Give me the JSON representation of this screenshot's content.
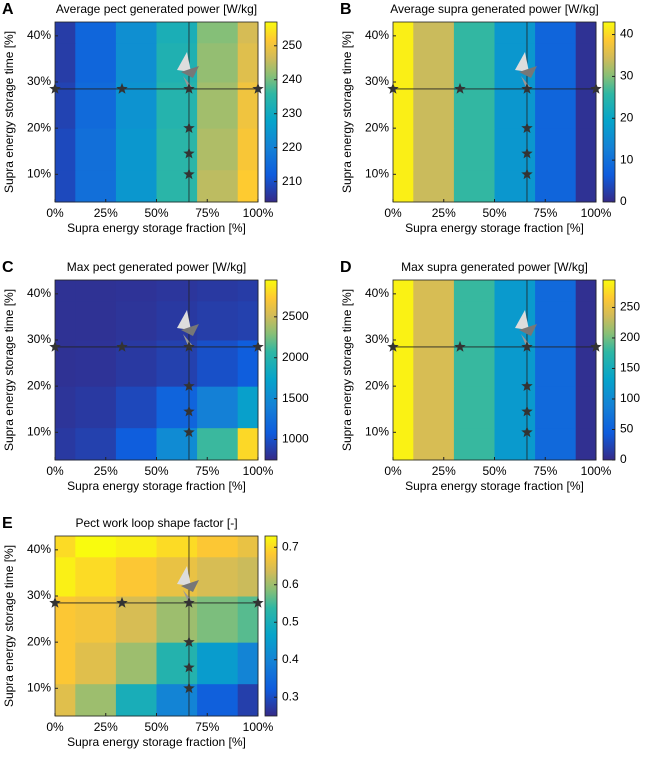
{
  "chart_data": [
    {
      "type": "heatmap",
      "label": "A",
      "title": "Average pect generated power [W/kg]",
      "x_label": "Supra energy storage fraction [%]",
      "y_label": "Supra energy storage time [%]",
      "x": [
        0,
        20,
        40,
        60,
        80,
        100
      ],
      "y": [
        7,
        15,
        25,
        35,
        42
      ],
      "z": [
        [
          209,
          216,
          225,
          235,
          245,
          252
        ],
        [
          209,
          216,
          225,
          235,
          244,
          251
        ],
        [
          208,
          215,
          224,
          234,
          243,
          250
        ],
        [
          207,
          214,
          223,
          233,
          242,
          248
        ],
        [
          207,
          214,
          223,
          232,
          241,
          247
        ]
      ],
      "xlim": [
        0,
        100
      ],
      "ylim": [
        4,
        43
      ],
      "xticks": [
        {
          "value": 0,
          "label": "0%"
        },
        {
          "value": 25,
          "label": "25%"
        },
        {
          "value": 50,
          "label": "50%"
        },
        {
          "value": 75,
          "label": "75%"
        },
        {
          "value": 100,
          "label": "100%"
        }
      ],
      "yticks": [
        {
          "value": 10,
          "label": "10%"
        },
        {
          "value": 20,
          "label": "20%"
        },
        {
          "value": 30,
          "label": "30%"
        },
        {
          "value": 40,
          "label": "40%"
        }
      ],
      "clim": [
        204,
        257
      ],
      "cticks": [
        210,
        220,
        230,
        240,
        250
      ],
      "markers_x": [
        0,
        33,
        66,
        100,
        66,
        66,
        66
      ],
      "markers_y": [
        28.5,
        28.5,
        28.5,
        28.5,
        20,
        14.5,
        10
      ],
      "crosshair": [
        66,
        28.5
      ]
    },
    {
      "type": "heatmap",
      "label": "B",
      "title": "Average supra generated power [W/kg]",
      "x_label": "Supra energy storage fraction [%]",
      "y_label": "Supra energy storage time [%]",
      "x": [
        0,
        20,
        40,
        60,
        80,
        100
      ],
      "y": [
        7,
        15,
        25,
        35,
        42
      ],
      "z": [
        [
          42,
          34,
          26,
          17,
          8,
          1
        ],
        [
          42,
          34,
          26,
          17,
          8,
          1
        ],
        [
          42,
          34,
          26,
          17,
          8,
          1
        ],
        [
          42,
          34,
          26,
          17,
          8,
          1
        ],
        [
          42,
          34,
          26,
          17,
          8,
          1
        ]
      ],
      "xlim": [
        0,
        100
      ],
      "ylim": [
        4,
        43
      ],
      "xticks": [
        {
          "value": 0,
          "label": "0%"
        },
        {
          "value": 25,
          "label": "25%"
        },
        {
          "value": 50,
          "label": "50%"
        },
        {
          "value": 75,
          "label": "75%"
        },
        {
          "value": 100,
          "label": "100%"
        }
      ],
      "yticks": [
        {
          "value": 10,
          "label": "10%"
        },
        {
          "value": 20,
          "label": "20%"
        },
        {
          "value": 30,
          "label": "30%"
        },
        {
          "value": 40,
          "label": "40%"
        }
      ],
      "clim": [
        0,
        43
      ],
      "cticks": [
        0,
        10,
        20,
        30,
        40
      ],
      "markers_x": [
        0,
        33,
        66,
        100,
        66,
        66,
        66
      ],
      "markers_y": [
        28.5,
        28.5,
        28.5,
        28.5,
        20,
        14.5,
        10
      ],
      "crosshair": [
        66,
        28.5
      ]
    },
    {
      "type": "heatmap",
      "label": "C",
      "title": "Max pect generated power [W/kg]",
      "x_label": "Supra energy storage fraction [%]",
      "y_label": "Supra energy storage time [%]",
      "x": [
        0,
        20,
        40,
        60,
        80,
        100
      ],
      "y": [
        7,
        15,
        25,
        35,
        42
      ],
      "z": [
        [
          850,
          900,
          1100,
          1500,
          2100,
          2800
        ],
        [
          820,
          850,
          950,
          1150,
          1400,
          1700
        ],
        [
          800,
          810,
          850,
          900,
          1000,
          1100
        ],
        [
          800,
          800,
          820,
          850,
          880,
          900
        ],
        [
          800,
          800,
          810,
          830,
          850,
          870
        ]
      ],
      "xlim": [
        0,
        100
      ],
      "ylim": [
        4,
        43
      ],
      "xticks": [
        {
          "value": 0,
          "label": "0%"
        },
        {
          "value": 25,
          "label": "25%"
        },
        {
          "value": 50,
          "label": "50%"
        },
        {
          "value": 75,
          "label": "75%"
        },
        {
          "value": 100,
          "label": "100%"
        }
      ],
      "yticks": [
        {
          "value": 10,
          "label": "10%"
        },
        {
          "value": 20,
          "label": "20%"
        },
        {
          "value": 30,
          "label": "30%"
        },
        {
          "value": 40,
          "label": "40%"
        }
      ],
      "clim": [
        750,
        2950
      ],
      "cticks": [
        1000,
        1500,
        2000,
        2500
      ],
      "markers_x": [
        0,
        33,
        66,
        100,
        66,
        66,
        66
      ],
      "markers_y": [
        28.5,
        28.5,
        28.5,
        28.5,
        20,
        14.5,
        10
      ],
      "crosshair": [
        66,
        28.5
      ]
    },
    {
      "type": "heatmap",
      "label": "D",
      "title": "Max supra generated power [W/kg]",
      "x_label": "Supra energy storage fraction [%]",
      "y_label": "Supra energy storage time [%]",
      "x": [
        0,
        20,
        40,
        60,
        80,
        100
      ],
      "y": [
        7,
        15,
        25,
        35,
        42
      ],
      "z": [
        [
          290,
          240,
          180,
          120,
          60,
          5
        ],
        [
          290,
          240,
          180,
          120,
          60,
          5
        ],
        [
          290,
          240,
          180,
          120,
          60,
          5
        ],
        [
          290,
          240,
          180,
          120,
          60,
          5
        ],
        [
          290,
          240,
          180,
          120,
          60,
          5
        ]
      ],
      "xlim": [
        0,
        100
      ],
      "ylim": [
        4,
        43
      ],
      "xticks": [
        {
          "value": 0,
          "label": "0%"
        },
        {
          "value": 25,
          "label": "25%"
        },
        {
          "value": 50,
          "label": "50%"
        },
        {
          "value": 75,
          "label": "75%"
        },
        {
          "value": 100,
          "label": "100%"
        }
      ],
      "yticks": [
        {
          "value": 10,
          "label": "10%"
        },
        {
          "value": 20,
          "label": "20%"
        },
        {
          "value": 30,
          "label": "30%"
        },
        {
          "value": 40,
          "label": "40%"
        }
      ],
      "clim": [
        0,
        295
      ],
      "cticks": [
        0,
        50,
        100,
        150,
        200,
        250
      ],
      "markers_x": [
        0,
        33,
        66,
        100,
        66,
        66,
        66
      ],
      "markers_y": [
        28.5,
        28.5,
        28.5,
        28.5,
        20,
        14.5,
        10
      ],
      "crosshair": [
        66,
        28.5
      ]
    },
    {
      "type": "heatmap",
      "label": "E",
      "title": "Pect work loop shape factor [-]",
      "x_label": "Supra energy storage fraction [%]",
      "y_label": "Supra energy storage time [%]",
      "x": [
        0,
        20,
        40,
        60,
        80,
        100
      ],
      "y": [
        7,
        15,
        25,
        35,
        42
      ],
      "z": [
        [
          0.65,
          0.6,
          0.5,
          0.4,
          0.33,
          0.28
        ],
        [
          0.68,
          0.65,
          0.6,
          0.52,
          0.45,
          0.4
        ],
        [
          0.68,
          0.67,
          0.64,
          0.6,
          0.58,
          0.56
        ],
        [
          0.72,
          0.7,
          0.68,
          0.66,
          0.64,
          0.63
        ],
        [
          0.7,
          0.73,
          0.72,
          0.7,
          0.68,
          0.66
        ]
      ],
      "xlim": [
        0,
        100
      ],
      "ylim": [
        4,
        43
      ],
      "xticks": [
        {
          "value": 0,
          "label": "0%"
        },
        {
          "value": 25,
          "label": "25%"
        },
        {
          "value": 50,
          "label": "50%"
        },
        {
          "value": 75,
          "label": "75%"
        },
        {
          "value": 100,
          "label": "100%"
        }
      ],
      "yticks": [
        {
          "value": 10,
          "label": "10%"
        },
        {
          "value": 20,
          "label": "20%"
        },
        {
          "value": 30,
          "label": "30%"
        },
        {
          "value": 40,
          "label": "40%"
        }
      ],
      "clim": [
        0.25,
        0.73
      ],
      "cticks": [
        0.3,
        0.4,
        0.5,
        0.6,
        0.7
      ],
      "markers_x": [
        0,
        33,
        66,
        100,
        66,
        66,
        66
      ],
      "markers_y": [
        28.5,
        28.5,
        28.5,
        28.5,
        20,
        14.5,
        10
      ],
      "crosshair": [
        66,
        28.5
      ]
    }
  ]
}
